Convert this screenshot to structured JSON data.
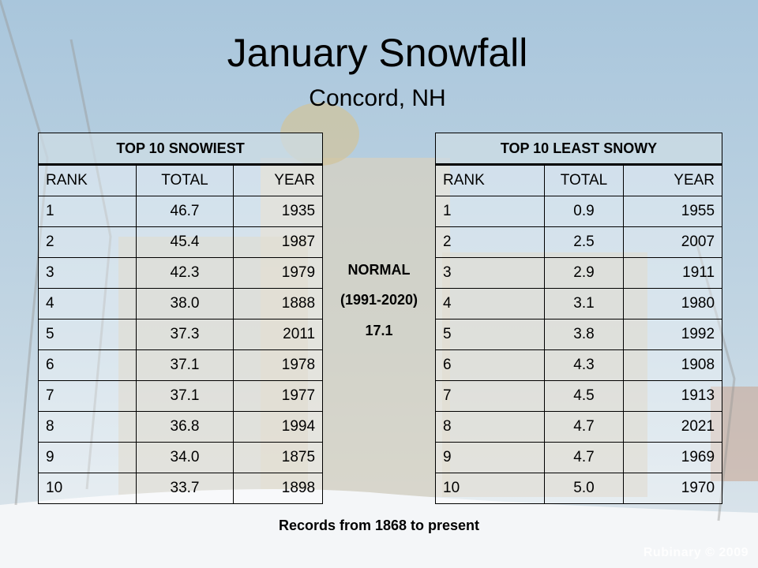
{
  "header": {
    "title": "January Snowfall",
    "subtitle": "Concord, NH"
  },
  "tables": [
    {
      "title": "TOP 10 SNOWIEST",
      "columns": [
        "RANK",
        "TOTAL",
        "YEAR"
      ],
      "rows": [
        [
          "1",
          "46.7",
          "1935"
        ],
        [
          "2",
          "45.4",
          "1987"
        ],
        [
          "3",
          "42.3",
          "1979"
        ],
        [
          "4",
          "38.0",
          "1888"
        ],
        [
          "5",
          "37.3",
          "2011"
        ],
        [
          "6",
          "37.1",
          "1978"
        ],
        [
          "7",
          "37.1",
          "1977"
        ],
        [
          "8",
          "36.8",
          "1994"
        ],
        [
          "9",
          "34.0",
          "1875"
        ],
        [
          "10",
          "33.7",
          "1898"
        ]
      ]
    },
    {
      "title": "TOP 10 LEAST SNOWY",
      "columns": [
        "RANK",
        "TOTAL",
        "YEAR"
      ],
      "rows": [
        [
          "1",
          "0.9",
          "1955"
        ],
        [
          "2",
          "2.5",
          "2007"
        ],
        [
          "3",
          "2.9",
          "1911"
        ],
        [
          "4",
          "3.1",
          "1980"
        ],
        [
          "5",
          "3.8",
          "1992"
        ],
        [
          "6",
          "4.3",
          "1908"
        ],
        [
          "7",
          "4.5",
          "1913"
        ],
        [
          "8",
          "4.7",
          "2021"
        ],
        [
          "9",
          "4.7",
          "1969"
        ],
        [
          "10",
          "5.0",
          "1970"
        ]
      ]
    }
  ],
  "normal": {
    "label": "NORMAL",
    "period": "(1991-2020)",
    "value": "17.1"
  },
  "footer": "Records from 1868 to present",
  "watermark": "Rubinary © 2009"
}
